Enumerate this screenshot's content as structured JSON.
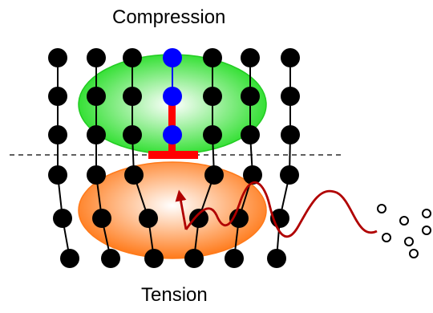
{
  "labels": {
    "top": "Compression",
    "bottom": "Tension"
  },
  "colors": {
    "atom": "#000000",
    "highlight_atom": "#0000ff",
    "dislocation": "#ff0000",
    "compression_region": "#22dd22",
    "tension_region": "#ff7a1a",
    "wave": "#b00000"
  }
}
